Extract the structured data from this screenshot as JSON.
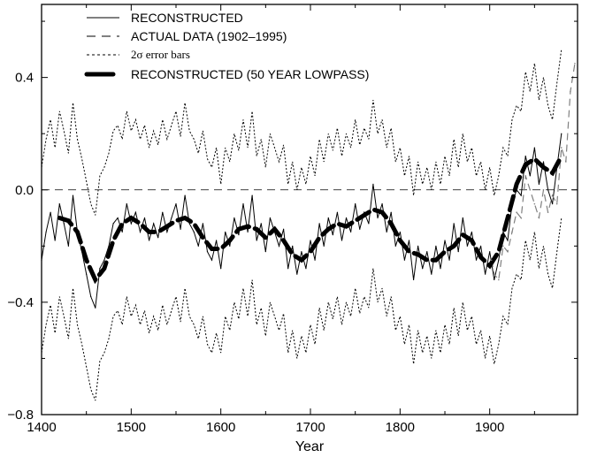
{
  "chart_data": {
    "type": "line",
    "title": "",
    "xlabel": "Year",
    "ylabel": "",
    "xlim": [
      1400,
      1998
    ],
    "ylim": [
      -0.8,
      0.66
    ],
    "x_ticks": [
      1400,
      1500,
      1600,
      1700,
      1800,
      1900
    ],
    "y_ticks": [
      -0.8,
      -0.4,
      0.0,
      0.4
    ],
    "y_tick_labels": [
      "−0.8",
      "−0.4",
      "0.0",
      "0.4"
    ],
    "zero_line": true,
    "grid": false,
    "legend_position": "top-left",
    "series": [
      {
        "name": "RECONSTRUCTED",
        "style": "solid-thin",
        "color": "#000000",
        "x": [
          1400,
          1405,
          1410,
          1415,
          1420,
          1425,
          1430,
          1435,
          1440,
          1445,
          1450,
          1455,
          1460,
          1465,
          1470,
          1475,
          1480,
          1485,
          1490,
          1495,
          1500,
          1505,
          1510,
          1515,
          1520,
          1525,
          1530,
          1535,
          1540,
          1545,
          1550,
          1555,
          1560,
          1565,
          1570,
          1575,
          1580,
          1585,
          1590,
          1595,
          1600,
          1605,
          1610,
          1615,
          1620,
          1625,
          1630,
          1635,
          1640,
          1645,
          1650,
          1655,
          1660,
          1665,
          1670,
          1675,
          1680,
          1685,
          1690,
          1695,
          1700,
          1705,
          1710,
          1715,
          1720,
          1725,
          1730,
          1735,
          1740,
          1745,
          1750,
          1755,
          1760,
          1765,
          1770,
          1775,
          1780,
          1785,
          1790,
          1795,
          1800,
          1805,
          1810,
          1815,
          1820,
          1825,
          1830,
          1835,
          1840,
          1845,
          1850,
          1855,
          1860,
          1865,
          1870,
          1875,
          1880,
          1885,
          1890,
          1895,
          1900,
          1905,
          1910,
          1915,
          1920,
          1925,
          1930,
          1935,
          1940,
          1945,
          1950,
          1955,
          1960,
          1965,
          1970,
          1975,
          1980
        ],
        "y": [
          -0.25,
          -0.15,
          -0.08,
          -0.18,
          -0.05,
          -0.12,
          -0.2,
          -0.02,
          -0.15,
          -0.22,
          -0.3,
          -0.38,
          -0.42,
          -0.28,
          -0.25,
          -0.2,
          -0.12,
          -0.1,
          -0.15,
          -0.05,
          -0.12,
          -0.08,
          -0.15,
          -0.1,
          -0.18,
          -0.12,
          -0.17,
          -0.08,
          -0.15,
          -0.1,
          -0.05,
          -0.14,
          -0.02,
          -0.12,
          -0.15,
          -0.2,
          -0.12,
          -0.22,
          -0.25,
          -0.18,
          -0.28,
          -0.15,
          -0.2,
          -0.1,
          -0.16,
          -0.05,
          -0.15,
          -0.02,
          -0.18,
          -0.12,
          -0.22,
          -0.1,
          -0.15,
          -0.2,
          -0.14,
          -0.28,
          -0.2,
          -0.3,
          -0.22,
          -0.28,
          -0.18,
          -0.25,
          -0.12,
          -0.2,
          -0.1,
          -0.16,
          -0.08,
          -0.18,
          -0.1,
          -0.15,
          -0.05,
          -0.14,
          -0.08,
          -0.12,
          0.02,
          -0.1,
          -0.05,
          -0.15,
          -0.08,
          -0.2,
          -0.15,
          -0.25,
          -0.18,
          -0.32,
          -0.2,
          -0.28,
          -0.22,
          -0.3,
          -0.2,
          -0.28,
          -0.18,
          -0.25,
          -0.12,
          -0.22,
          -0.1,
          -0.2,
          -0.15,
          -0.25,
          -0.2,
          -0.3,
          -0.22,
          -0.32,
          -0.25,
          -0.15,
          -0.18,
          -0.05,
          0.0,
          -0.02,
          0.12,
          0.05,
          0.15,
          0.02,
          0.1,
          0.0,
          -0.05,
          0.08,
          0.2
        ]
      },
      {
        "name": "ACTUAL DATA (1902–1995)",
        "style": "long-dash",
        "color": "#808080",
        "x": [
          1902,
          1905,
          1910,
          1915,
          1920,
          1925,
          1930,
          1935,
          1940,
          1945,
          1950,
          1955,
          1960,
          1965,
          1970,
          1975,
          1980,
          1985,
          1990,
          1995
        ],
        "y": [
          -0.25,
          -0.3,
          -0.32,
          -0.2,
          -0.22,
          -0.15,
          -0.08,
          -0.1,
          0.05,
          0.0,
          -0.05,
          -0.1,
          0.0,
          -0.08,
          -0.02,
          -0.05,
          0.15,
          0.1,
          0.35,
          0.45
        ]
      },
      {
        "name": "2σ error bars",
        "style": "dotted",
        "color": "#000000",
        "two_sigma": [
          {
            "from": 1400,
            "to": 1599,
            "value": 0.33
          },
          {
            "from": 1600,
            "to": 1980,
            "value": 0.3
          }
        ]
      },
      {
        "name": "RECONSTRUCTED (50 YEAR LOWPASS)",
        "style": "thick-dash",
        "color": "#000000",
        "x": [
          1420,
          1430,
          1440,
          1450,
          1460,
          1470,
          1480,
          1490,
          1500,
          1510,
          1520,
          1530,
          1540,
          1550,
          1560,
          1570,
          1580,
          1590,
          1600,
          1610,
          1620,
          1630,
          1640,
          1650,
          1660,
          1670,
          1680,
          1690,
          1700,
          1710,
          1720,
          1730,
          1740,
          1750,
          1760,
          1770,
          1780,
          1790,
          1800,
          1810,
          1820,
          1830,
          1840,
          1850,
          1860,
          1870,
          1880,
          1890,
          1900,
          1910,
          1920,
          1930,
          1940,
          1950,
          1960,
          1970,
          1980
        ],
        "y": [
          -0.1,
          -0.11,
          -0.15,
          -0.25,
          -0.32,
          -0.28,
          -0.18,
          -0.12,
          -0.1,
          -0.12,
          -0.15,
          -0.15,
          -0.13,
          -0.11,
          -0.1,
          -0.12,
          -0.17,
          -0.21,
          -0.21,
          -0.18,
          -0.14,
          -0.13,
          -0.14,
          -0.17,
          -0.14,
          -0.18,
          -0.23,
          -0.25,
          -0.22,
          -0.17,
          -0.14,
          -0.12,
          -0.13,
          -0.11,
          -0.09,
          -0.07,
          -0.08,
          -0.12,
          -0.18,
          -0.22,
          -0.23,
          -0.25,
          -0.25,
          -0.22,
          -0.2,
          -0.16,
          -0.18,
          -0.24,
          -0.27,
          -0.22,
          -0.1,
          0.02,
          0.09,
          0.11,
          0.08,
          0.06,
          0.12
        ]
      }
    ]
  }
}
